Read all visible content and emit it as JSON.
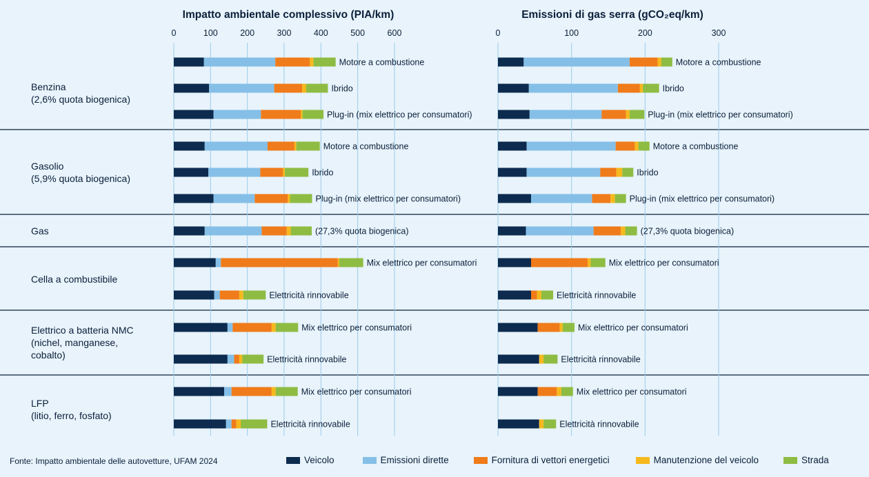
{
  "source": "Fonte: Impatto ambientale delle autovetture, UFAM 2024",
  "colors": {
    "Veicolo": "#0d2b4e",
    "Emissioni dirette": "#85bfe7",
    "Fornitura di vettori energetici": "#f07b1a",
    "Manutenzione del veicolo": "#f6b81d",
    "Strada": "#8ebc43"
  },
  "legend": [
    "Veicolo",
    "Emissioni dirette",
    "Fornitura di vettori energetici",
    "Manutenzione del veicolo",
    "Strada"
  ],
  "groups": [
    {
      "label": "Benzina\n(2,6% quota biogenica)",
      "rows": 3
    },
    {
      "label": "Gasolio\n(5,9% quota biogenica)",
      "rows": 3
    },
    {
      "label": "Gas",
      "rows": 1
    },
    {
      "label": "Cella a combustibile",
      "rows": 2
    },
    {
      "label": "Elettrico a batteria NMC\n(nichel, manganese,\ncobalto)",
      "rows": 2
    },
    {
      "label": "LFP\n(litio, ferro, fosfato)",
      "rows": 2
    }
  ],
  "row_labels": [
    "Motore a combustione",
    "Ibrido",
    "Plug-in (mix elettrico per consumatori)",
    "Motore a combustione",
    "Ibrido",
    "Plug-in (mix elettrico per consumatori)",
    "(27,3% quota biogenica)",
    "Mix elettrico per consumatori",
    "Elettricità rinnovabile",
    "Mix elettrico per consumatori",
    "Elettricità rinnovabile",
    "Mix elettrico per consumatori",
    "Elettricità rinnovabile"
  ],
  "chart_data": [
    {
      "type": "bar",
      "orientation": "horizontal",
      "stacked": true,
      "title": "Impatto ambientale complessivo (PIA/km)",
      "xlim": [
        0,
        600
      ],
      "xticks": [
        0,
        100,
        200,
        300,
        400,
        500,
        600
      ],
      "grid": true,
      "series": [
        {
          "name": "Veicolo",
          "values": [
            82,
            96,
            108,
            84,
            94,
            108,
            84,
            114,
            110,
            146,
            146,
            137,
            142
          ]
        },
        {
          "name": "Emissioni dirette",
          "values": [
            194,
            177,
            129,
            171,
            141,
            112,
            155,
            14,
            15,
            14,
            18,
            20,
            15
          ]
        },
        {
          "name": "Fornitura di vettori energetici",
          "values": [
            94,
            76,
            108,
            73,
            62,
            90,
            68,
            318,
            53,
            106,
            14,
            109,
            13
          ]
        },
        {
          "name": "Manutenzione del veicolo",
          "values": [
            10,
            11,
            5,
            5,
            5,
            6,
            11,
            4,
            11,
            11,
            8,
            11,
            12
          ]
        },
        {
          "name": "Strada",
          "values": [
            60,
            59,
            57,
            64,
            64,
            60,
            57,
            65,
            61,
            61,
            58,
            60,
            72
          ]
        }
      ]
    },
    {
      "type": "bar",
      "orientation": "horizontal",
      "stacked": true,
      "title": "Emissioni di gas serra (gCO₂eq/km)",
      "xlim": [
        0,
        300
      ],
      "xticks": [
        0,
        100,
        200,
        300
      ],
      "grid": true,
      "series": [
        {
          "name": "Veicolo",
          "values": [
            35,
            42,
            43,
            39,
            39,
            45,
            38,
            45,
            45,
            54,
            56,
            54,
            56
          ]
        },
        {
          "name": "Emissioni dirette",
          "values": [
            144,
            121,
            98,
            121,
            100,
            83,
            92,
            0,
            0,
            0,
            0,
            0,
            0
          ]
        },
        {
          "name": "Fornitura di vettori energetici",
          "values": [
            38,
            30,
            33,
            26,
            22,
            25,
            37,
            77,
            8,
            30,
            0,
            26,
            0
          ]
        },
        {
          "name": "Manutenzione del veicolo",
          "values": [
            5,
            4,
            5,
            5,
            8,
            6,
            6,
            4,
            6,
            4,
            6,
            6,
            6
          ]
        },
        {
          "name": "Strada",
          "values": [
            15,
            22,
            20,
            15,
            15,
            15,
            16,
            20,
            16,
            16,
            19,
            16,
            17
          ]
        }
      ]
    }
  ]
}
